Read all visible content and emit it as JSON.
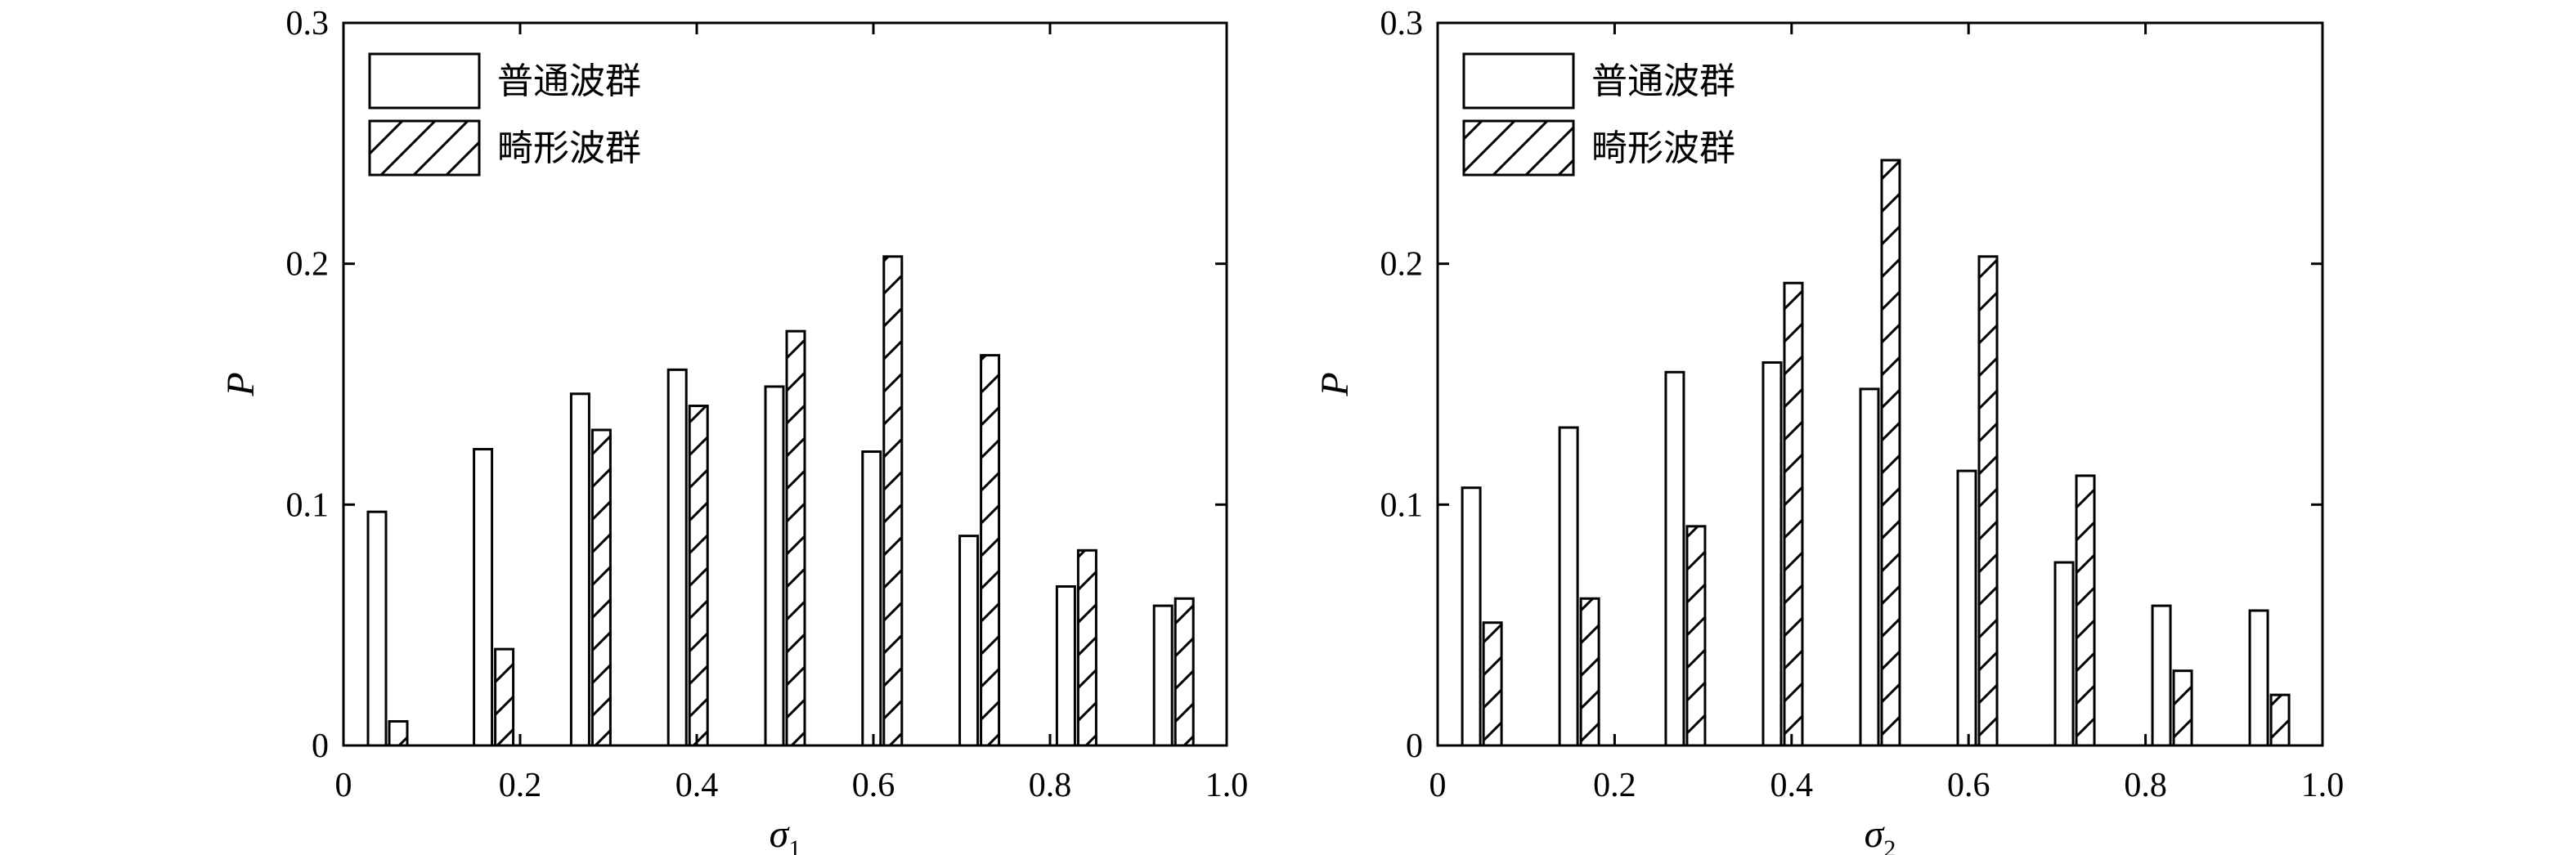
{
  "chart_data": [
    {
      "type": "bar",
      "xlabel": "σ",
      "xlabel_sub": "1",
      "ylabel": "P",
      "xlim": [
        0,
        1.0
      ],
      "ylim": [
        0,
        0.3
      ],
      "xticks": [
        "0",
        "0.2",
        "0.4",
        "0.6",
        "0.8",
        "1.0"
      ],
      "yticks": [
        "0",
        "0.1",
        "0.2",
        "0.3"
      ],
      "grid": false,
      "legend": "top-left",
      "x": [
        0.05,
        0.17,
        0.28,
        0.39,
        0.5,
        0.61,
        0.72,
        0.83,
        0.94
      ],
      "series": [
        {
          "name": "普通波群",
          "pattern": "plain",
          "values": [
            0.097,
            0.123,
            0.146,
            0.156,
            0.149,
            0.122,
            0.087,
            0.066,
            0.058
          ]
        },
        {
          "name": "畸形波群",
          "pattern": "hatched",
          "values": [
            0.01,
            0.04,
            0.131,
            0.141,
            0.172,
            0.203,
            0.162,
            0.081,
            0.061
          ]
        }
      ]
    },
    {
      "type": "bar",
      "xlabel": "σ",
      "xlabel_sub": "2",
      "ylabel": "P",
      "xlim": [
        0,
        1.0
      ],
      "ylim": [
        0,
        0.3
      ],
      "xticks": [
        "0",
        "0.2",
        "0.4",
        "0.6",
        "0.8",
        "1.0"
      ],
      "yticks": [
        "0",
        "0.1",
        "0.2",
        "0.3"
      ],
      "grid": false,
      "legend": "top-left",
      "x": [
        0.05,
        0.16,
        0.28,
        0.39,
        0.5,
        0.61,
        0.72,
        0.83,
        0.94
      ],
      "series": [
        {
          "name": "普通波群",
          "pattern": "plain",
          "values": [
            0.107,
            0.132,
            0.155,
            0.159,
            0.148,
            0.114,
            0.076,
            0.058,
            0.056
          ]
        },
        {
          "name": "畸形波群",
          "pattern": "hatched",
          "values": [
            0.051,
            0.061,
            0.091,
            0.192,
            0.243,
            0.203,
            0.112,
            0.031,
            0.021
          ]
        }
      ]
    }
  ],
  "colors": {
    "stroke": "#000000",
    "fill": "#ffffff"
  }
}
